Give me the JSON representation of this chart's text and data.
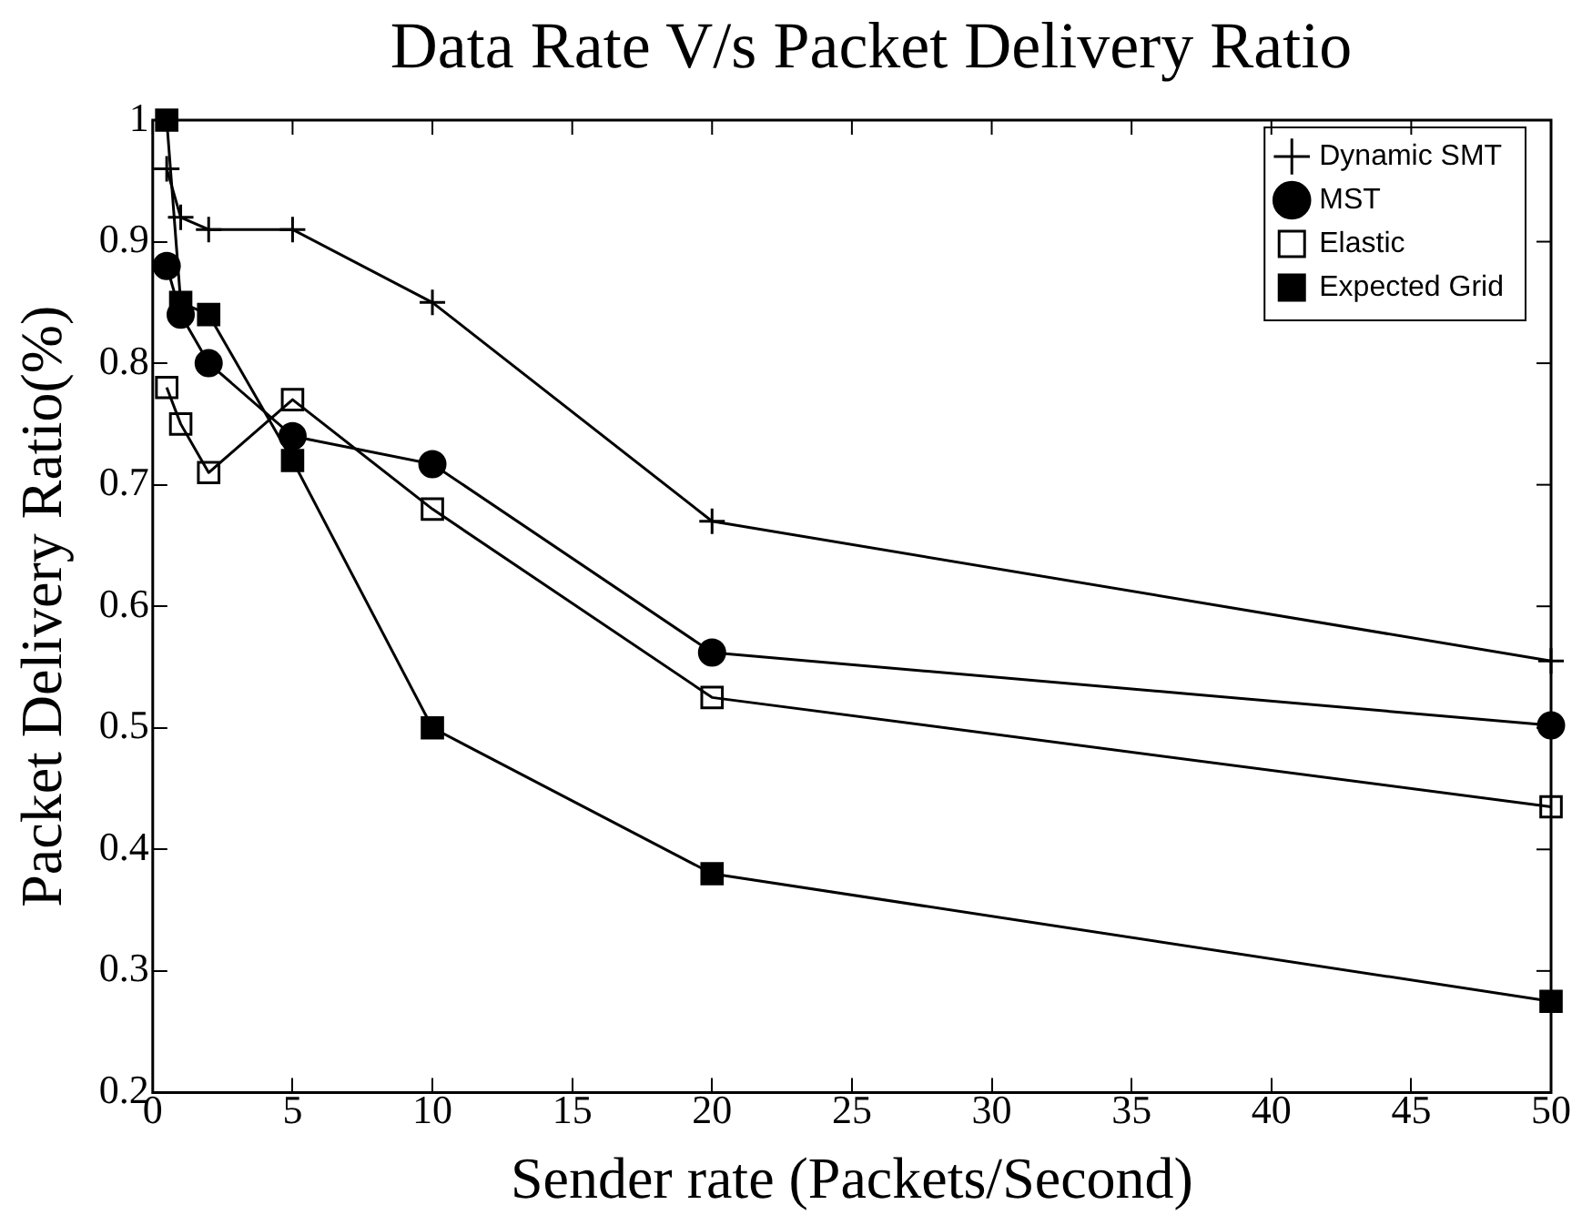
{
  "chart_data": {
    "type": "line",
    "title": "Data Rate V/s Packet Delivery Ratio",
    "xlabel": "Sender rate (Packets/Second)",
    "ylabel": "Packet Delivery Ratio(%)",
    "x": [
      0.5,
      1,
      2,
      5,
      10,
      20,
      50
    ],
    "series": [
      {
        "name": "Dynamic SMT",
        "color": "#000000",
        "marker": "cross",
        "values": [
          0.96,
          0.92,
          0.91,
          0.91,
          0.85,
          0.67,
          0.555
        ]
      },
      {
        "name": "MST",
        "color": "#000000",
        "marker": "circle",
        "values": [
          0.88,
          0.84,
          0.8,
          0.74,
          0.717,
          0.562,
          0.502
        ]
      },
      {
        "name": "Elastic",
        "color": "#000000",
        "marker": "square_open",
        "values": [
          0.78,
          0.75,
          0.71,
          0.77,
          0.68,
          0.525,
          0.435
        ]
      },
      {
        "name": "Expected Grid",
        "color": "#000000",
        "marker": "square",
        "values": [
          1.0,
          0.85,
          0.84,
          0.72,
          0.5,
          0.38,
          0.275
        ]
      }
    ],
    "xlim": [
      0,
      50
    ],
    "xticks": [
      0,
      5,
      10,
      15,
      20,
      25,
      30,
      35,
      40,
      45,
      50
    ],
    "ylim": [
      0.2,
      1
    ],
    "yticks": [
      0.2,
      0.3,
      0.4,
      0.5,
      0.6,
      0.7,
      0.8,
      0.9,
      1
    ],
    "grid": false,
    "legend": "top right",
    "line_style": "solid"
  }
}
